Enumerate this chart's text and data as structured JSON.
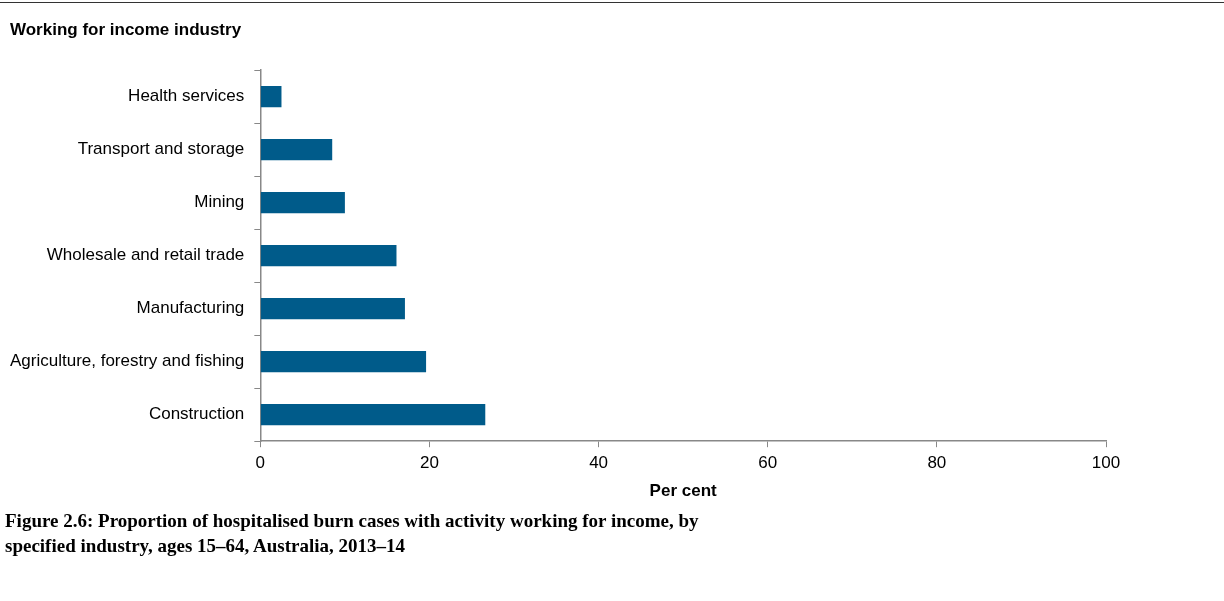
{
  "chart_data": {
    "type": "bar",
    "orientation": "horizontal",
    "title": "Figure 2.6: Proportion of hospitalised burn cases with activity working for income, by specified industry, ages 15–64, Australia, 2013–14",
    "ylabel": "Working for income industry",
    "xlabel": "Per cent",
    "categories": [
      "Health services",
      "Transport and storage",
      "Mining",
      "Wholesale and retail trade",
      "Manufacturing",
      "Agriculture, forestry and fishing",
      "Construction"
    ],
    "values": [
      2.5,
      8.5,
      10.0,
      16.1,
      17.1,
      19.6,
      26.6
    ],
    "color": "#005b8a",
    "xlim": [
      0,
      100
    ],
    "xticks": [
      0,
      20,
      40,
      60,
      80,
      100
    ],
    "grid": false,
    "legend": false
  }
}
